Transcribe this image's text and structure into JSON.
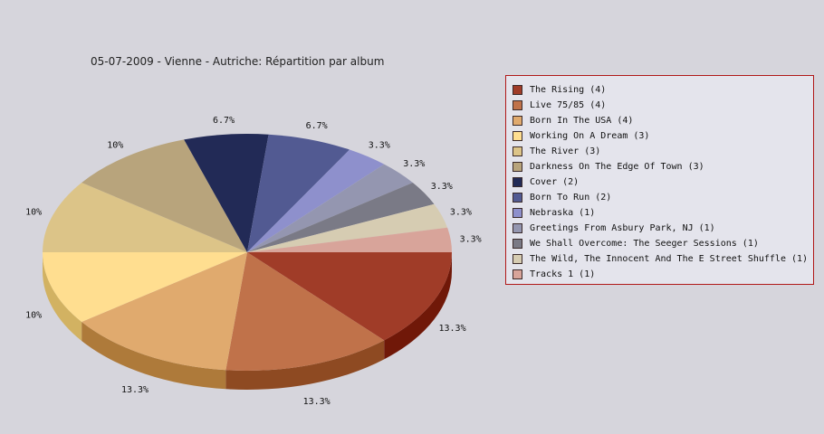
{
  "chart_data": {
    "type": "pie",
    "title": "05-07-2009 - Vienne - Autriche:  Répartition par album",
    "slices": [
      {
        "name": "The Rising",
        "count": 4,
        "legend": "The Rising (4)",
        "percent_label": "13.3%",
        "color": "#a03c28",
        "side": "#701808"
      },
      {
        "name": "Live 75/85",
        "count": 4,
        "legend": "Live 75/85 (4)",
        "percent_label": "13.3%",
        "color": "#c0724a",
        "side": "#8e4a22"
      },
      {
        "name": "Born In The USA",
        "count": 4,
        "legend": "Born In The USA (4)",
        "percent_label": "13.3%",
        "color": "#e0aa6e",
        "side": "#ae7a3a"
      },
      {
        "name": "Working On A Dream",
        "count": 3,
        "legend": "Working On A Dream (3)",
        "percent_label": "10%",
        "color": "#ffde90",
        "side": "#d2b262"
      },
      {
        "name": "The River",
        "count": 3,
        "legend": "The River (3)",
        "percent_label": "10%",
        "color": "#dcc488",
        "side": "#b09856"
      },
      {
        "name": "Darkness On The Edge Of Town",
        "count": 3,
        "legend": "Darkness On The Edge Of Town (3)",
        "percent_label": "10%",
        "color": "#b8a47c",
        "side": "#8c7850"
      },
      {
        "name": "Cover",
        "count": 2,
        "legend": "Cover (2)",
        "percent_label": "6.7%",
        "color": "#222a56",
        "side": "#141838"
      },
      {
        "name": "Born To Run",
        "count": 2,
        "legend": "Born To Run (2)",
        "percent_label": "6.7%",
        "color": "#525a92",
        "side": "#363c6a"
      },
      {
        "name": "Nebraska",
        "count": 1,
        "legend": "Nebraska (1)",
        "percent_label": "3.3%",
        "color": "#8e90cc",
        "side": "#6668a0"
      },
      {
        "name": "Greetings From Asbury Park, NJ",
        "count": 1,
        "legend": "Greetings From Asbury Park, NJ (1)",
        "percent_label": "3.3%",
        "color": "#9496b0",
        "side": "#6c6e88"
      },
      {
        "name": "We Shall Overcome: The Seeger Sessions",
        "count": 1,
        "legend": "We Shall Overcome: The Seeger Sessions (1)",
        "percent_label": "3.3%",
        "color": "#7a7a86",
        "side": "#54545e"
      },
      {
        "name": "The Wild, The Innocent And The E Street Shuffle",
        "count": 1,
        "legend": "The Wild, The Innocent And The E Street Shuffle (1)",
        "percent_label": "3.3%",
        "color": "#d6ccb2",
        "side": "#aca288"
      },
      {
        "name": "Tracks 1",
        "count": 1,
        "legend": "Tracks 1 (1)",
        "percent_label": "3.3%",
        "color": "#d8a49a",
        "side": "#ac7a70"
      }
    ]
  }
}
